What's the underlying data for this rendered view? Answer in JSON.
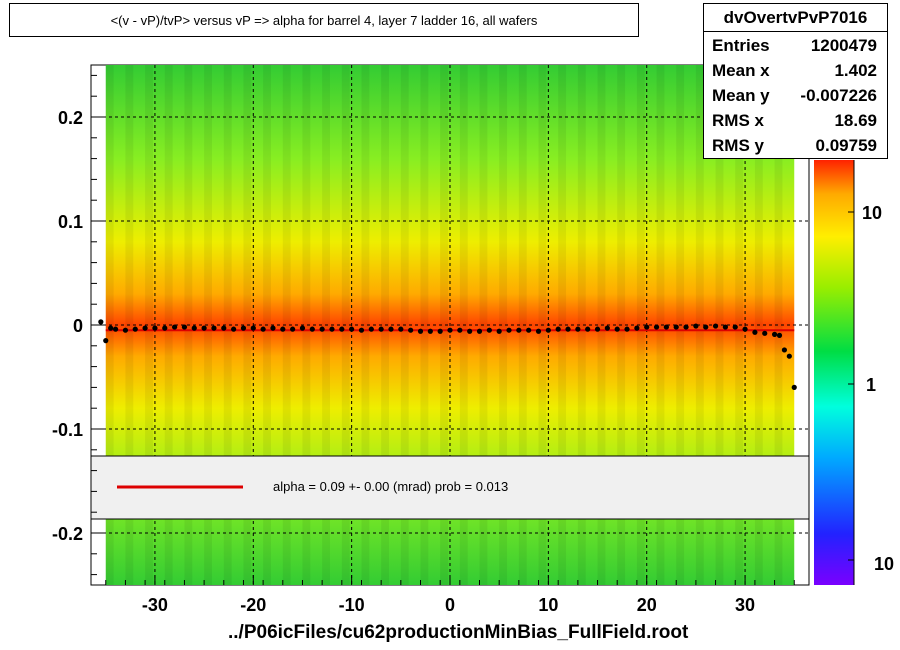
{
  "title": "<(v - vP)/tvP>  versus   vP =>  alpha for barrel 4, layer 7 ladder 16, all wafers",
  "stats": {
    "name": "dvOvertvPvP7016",
    "rows": [
      {
        "label": "Entries",
        "value": "1200479"
      },
      {
        "label": "Mean x",
        "value": "1.402"
      },
      {
        "label": "Mean y",
        "value": "-0.007226"
      },
      {
        "label": "RMS x",
        "value": "18.69"
      },
      {
        "label": "RMS y",
        "value": "0.09759"
      }
    ]
  },
  "legend": {
    "text": "alpha =    0.09 +-  0.00 (mrad) prob = 0.013",
    "line_color": "#dd0000"
  },
  "x_axis_title": "../P06icFiles/cu62productionMinBias_FullField.root",
  "colors": {
    "line_fit": "#dd0000",
    "profile_marker": "#000000",
    "legend_bg": "#f0f0f0"
  },
  "chart_data": {
    "type": "heatmap",
    "title": "<(v - vP)/tvP>  versus   vP =>  alpha for barrel 4, layer 7 ladder 16, all wafers",
    "xlabel": "../P06icFiles/cu62productionMinBias_FullField.root",
    "ylabel": "",
    "xlim": [
      -36.5,
      36.5
    ],
    "ylim": [
      -0.25,
      0.25
    ],
    "x_ticks": [
      -30,
      -20,
      -10,
      0,
      10,
      20,
      30
    ],
    "y_ticks": [
      -0.2,
      -0.1,
      0,
      0.1,
      0.2
    ],
    "x_tick_labels": [
      "-30",
      "-20",
      "-10",
      "0",
      "10",
      "20",
      "30"
    ],
    "y_tick_labels": [
      "-0.2",
      "-0.1",
      "0",
      "0.1",
      "0.2"
    ],
    "grid": true,
    "log_z": true,
    "z_tick_labels": [
      "10",
      "1",
      "10"
    ],
    "fit_line": {
      "y": -0.005,
      "x_range": [
        -35,
        35
      ]
    },
    "profile": {
      "x": [
        -35.5,
        -35,
        -34.5,
        -34,
        -33,
        -32,
        -31,
        -30,
        -29,
        -28,
        -27,
        -26,
        -25,
        -24,
        -23,
        -22,
        -21,
        -20,
        -19,
        -18,
        -17,
        -16,
        -15,
        -14,
        -13,
        -12,
        -11,
        -10,
        -9,
        -8,
        -7,
        -6,
        -5,
        -4,
        -3,
        -2,
        -1,
        0,
        1,
        2,
        3,
        4,
        5,
        6,
        7,
        8,
        9,
        10,
        11,
        12,
        13,
        14,
        15,
        16,
        17,
        18,
        19,
        20,
        21,
        22,
        23,
        24,
        25,
        26,
        27,
        28,
        29,
        30,
        31,
        32,
        33,
        33.5,
        34,
        34.5,
        35
      ],
      "y": [
        0.003,
        -0.015,
        -0.003,
        -0.004,
        -0.005,
        -0.004,
        -0.003,
        -0.003,
        -0.003,
        -0.002,
        -0.002,
        -0.003,
        -0.003,
        -0.003,
        -0.003,
        -0.004,
        -0.003,
        -0.003,
        -0.004,
        -0.003,
        -0.004,
        -0.004,
        -0.003,
        -0.004,
        -0.004,
        -0.004,
        -0.004,
        -0.004,
        -0.005,
        -0.004,
        -0.004,
        -0.004,
        -0.004,
        -0.005,
        -0.006,
        -0.006,
        -0.006,
        -0.005,
        -0.005,
        -0.006,
        -0.006,
        -0.005,
        -0.006,
        -0.005,
        -0.005,
        -0.005,
        -0.006,
        -0.005,
        -0.004,
        -0.004,
        -0.004,
        -0.004,
        -0.004,
        -0.003,
        -0.004,
        -0.004,
        -0.003,
        -0.002,
        -0.002,
        -0.002,
        -0.002,
        -0.002,
        -0.001,
        -0.002,
        -0.001,
        -0.002,
        -0.002,
        -0.004,
        -0.007,
        -0.008,
        -0.009,
        -0.01,
        -0.024,
        -0.03,
        -0.06
      ]
    }
  }
}
